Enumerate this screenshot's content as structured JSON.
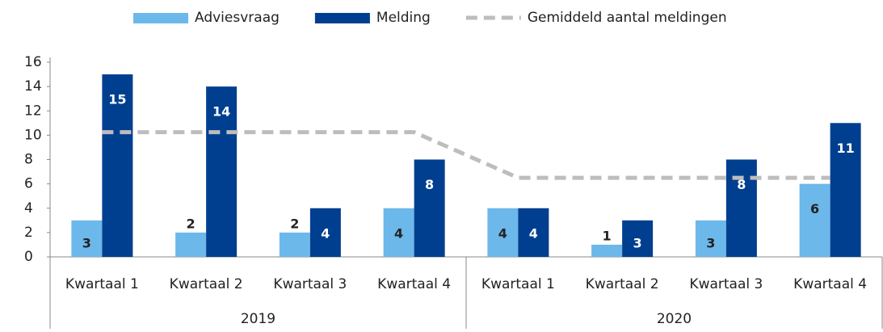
{
  "chart_data": {
    "type": "bar",
    "categories": [
      "Kwartaal 1",
      "Kwartaal 2",
      "Kwartaal 3",
      "Kwartaal 4",
      "Kwartaal 1",
      "Kwartaal 2",
      "Kwartaal 3",
      "Kwartaal 4"
    ],
    "groups": [
      "2019",
      "2020"
    ],
    "series": [
      {
        "name": "Adviesvraag",
        "color": "#6cb8ea",
        "type": "bar",
        "values": [
          3,
          2,
          2,
          4,
          4,
          1,
          3,
          6
        ]
      },
      {
        "name": "Melding",
        "color": "#003f8f",
        "type": "bar",
        "values": [
          15,
          14,
          4,
          8,
          4,
          3,
          8,
          11
        ]
      },
      {
        "name": "Gemiddeld aantal meldingen",
        "color": "#bdbdbd",
        "type": "line",
        "values": [
          10.25,
          10.25,
          10.25,
          10.25,
          6.5,
          6.5,
          6.5,
          6.5
        ]
      }
    ],
    "ylim": [
      0,
      16
    ],
    "yticks": [
      0,
      2,
      4,
      6,
      8,
      10,
      12,
      14,
      16
    ],
    "legend": "top"
  }
}
